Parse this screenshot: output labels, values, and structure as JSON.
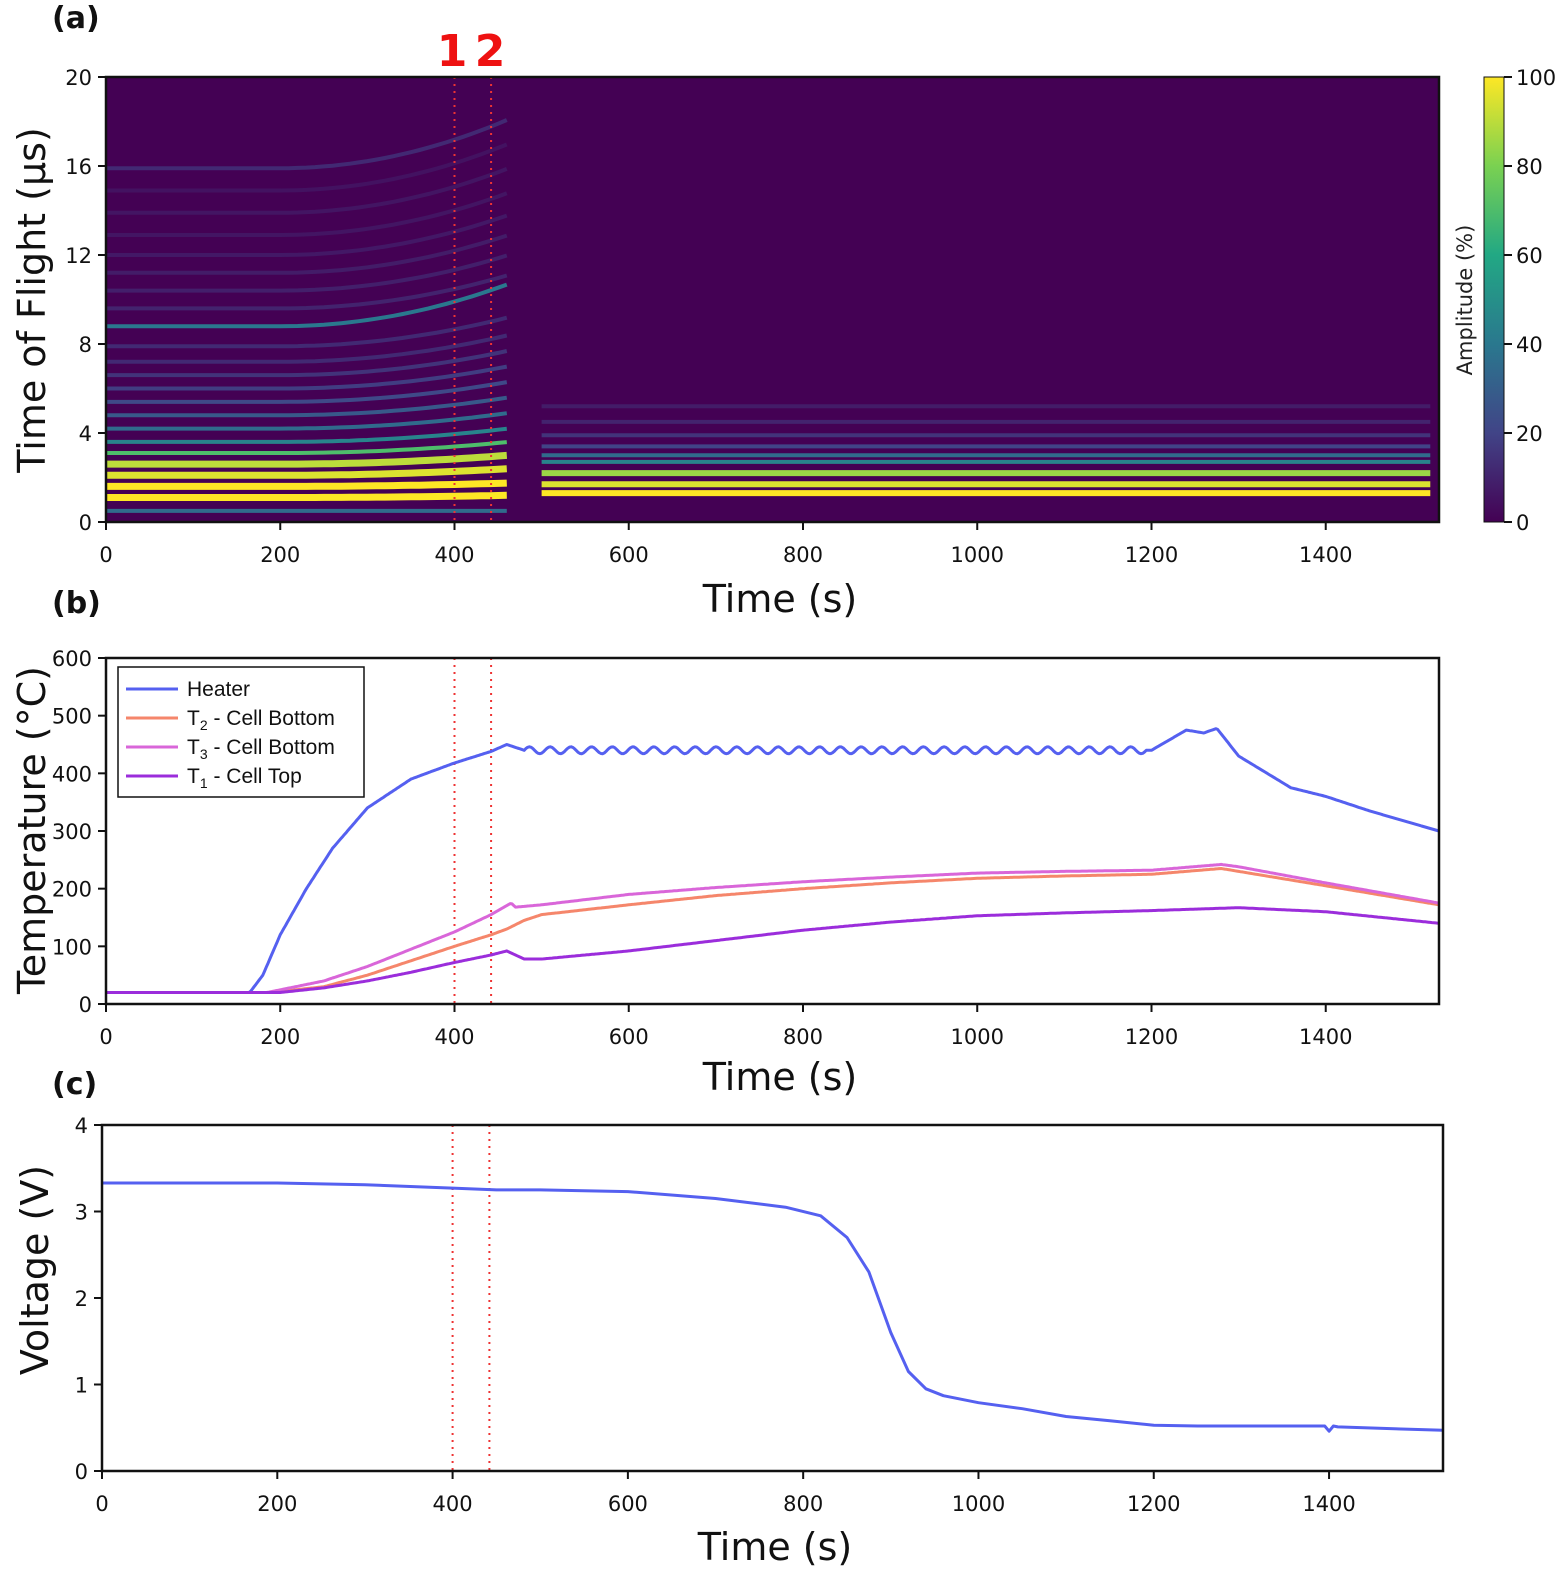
{
  "colors": {
    "heater": "#5560f0",
    "t2": "#f5866b",
    "t3": "#d966d9",
    "t1": "#9b2ddb",
    "voltage": "#5560f0",
    "marker": "#ee3333",
    "viridis_low": "#440154",
    "viridis_high": "#fde725"
  },
  "markers": {
    "times": [
      400,
      442
    ],
    "labels": [
      "1",
      "2"
    ]
  },
  "chart_data": [
    {
      "type": "heatmap",
      "panel_label": "(a)",
      "xlabel": "Time (s)",
      "ylabel": "Time of Flight (μs)",
      "colorbar_label": "Amplitude (%)",
      "xlim": [
        0,
        1530
      ],
      "ylim": [
        0,
        20
      ],
      "clim": [
        0,
        100
      ],
      "xticks": [
        0,
        200,
        400,
        600,
        800,
        1000,
        1200,
        1400
      ],
      "yticks": [
        0,
        4,
        8,
        12,
        16,
        20
      ],
      "cticks": [
        0,
        20,
        40,
        60,
        80,
        100
      ],
      "bands": [
        {
          "tof": 0.5,
          "amp": 35,
          "shift": 0
        },
        {
          "tof": 1.1,
          "amp": 100,
          "shift": 0.1
        },
        {
          "tof": 1.6,
          "amp": 100,
          "shift": 0.15
        },
        {
          "tof": 2.1,
          "amp": 95,
          "shift": 0.3
        },
        {
          "tof": 2.6,
          "amp": 90,
          "shift": 0.4
        },
        {
          "tof": 3.1,
          "amp": 70,
          "shift": 0.5
        },
        {
          "tof": 3.6,
          "amp": 45,
          "shift": 0.6
        },
        {
          "tof": 4.2,
          "amp": 35,
          "shift": 0.7
        },
        {
          "tof": 4.8,
          "amp": 28,
          "shift": 0.8
        },
        {
          "tof": 5.4,
          "amp": 22,
          "shift": 0.9
        },
        {
          "tof": 6.0,
          "amp": 18,
          "shift": 1.0
        },
        {
          "tof": 6.6,
          "amp": 15,
          "shift": 1.1
        },
        {
          "tof": 7.2,
          "amp": 12,
          "shift": 1.2
        },
        {
          "tof": 7.9,
          "amp": 12,
          "shift": 1.3
        },
        {
          "tof": 8.8,
          "amp": 40,
          "shift": 1.9
        },
        {
          "tof": 9.6,
          "amp": 10,
          "shift": 1.5
        },
        {
          "tof": 10.4,
          "amp": 9,
          "shift": 1.6
        },
        {
          "tof": 11.2,
          "amp": 8,
          "shift": 1.7
        },
        {
          "tof": 12.0,
          "amp": 7,
          "shift": 1.8
        },
        {
          "tof": 12.9,
          "amp": 6,
          "shift": 1.9
        },
        {
          "tof": 13.9,
          "amp": 6,
          "shift": 2.0
        },
        {
          "tof": 14.9,
          "amp": 5,
          "shift": 2.1
        },
        {
          "tof": 15.9,
          "amp": 12,
          "shift": 2.2
        }
      ],
      "late_bands": [
        {
          "tof": 1.3,
          "amp": 100
        },
        {
          "tof": 1.7,
          "amp": 95
        },
        {
          "tof": 2.2,
          "amp": 85
        },
        {
          "tof": 2.7,
          "amp": 45
        },
        {
          "tof": 3.0,
          "amp": 35
        },
        {
          "tof": 3.4,
          "amp": 20
        },
        {
          "tof": 3.9,
          "amp": 15
        },
        {
          "tof": 4.5,
          "amp": 10
        },
        {
          "tof": 5.2,
          "amp": 8
        }
      ]
    },
    {
      "type": "line",
      "panel_label": "(b)",
      "xlabel": "Time (s)",
      "ylabel": "Temperature (°C)",
      "xlim": [
        0,
        1530
      ],
      "ylim": [
        0,
        600
      ],
      "xticks": [
        0,
        200,
        400,
        600,
        800,
        1000,
        1200,
        1400
      ],
      "yticks": [
        0,
        100,
        200,
        300,
        400,
        500,
        600
      ],
      "legend_position": "top-left",
      "series": [
        {
          "name": "Heater",
          "key": "heater",
          "base": "Heater",
          "sub": "",
          "suffix": "",
          "oscillate": true,
          "x": [
            0,
            165,
            180,
            200,
            230,
            260,
            300,
            350,
            400,
            442,
            460,
            480,
            1200,
            1240,
            1260,
            1275,
            1300,
            1360,
            1400,
            1450,
            1530
          ],
          "y": [
            20,
            20,
            50,
            120,
            200,
            270,
            340,
            390,
            418,
            438,
            450,
            440,
            440,
            475,
            470,
            478,
            430,
            375,
            360,
            335,
            300
          ]
        },
        {
          "name": "T2 - Cell Bottom",
          "key": "t2",
          "base": "T",
          "sub": "2",
          "suffix": " - Cell Bottom",
          "oscillate": false,
          "x": [
            0,
            190,
            250,
            300,
            350,
            400,
            442,
            460,
            480,
            500,
            600,
            700,
            800,
            900,
            1000,
            1100,
            1200,
            1280,
            1300,
            1400,
            1530
          ],
          "y": [
            20,
            20,
            30,
            50,
            75,
            100,
            120,
            130,
            145,
            155,
            172,
            188,
            200,
            210,
            218,
            222,
            225,
            235,
            230,
            205,
            172
          ]
        },
        {
          "name": "T3 - Cell Bottom",
          "key": "t3",
          "base": "T",
          "sub": "3",
          "suffix": " - Cell Bottom",
          "oscillate": false,
          "x": [
            0,
            185,
            250,
            300,
            350,
            400,
            442,
            465,
            470,
            500,
            600,
            700,
            800,
            900,
            1000,
            1100,
            1200,
            1280,
            1300,
            1400,
            1530
          ],
          "y": [
            20,
            20,
            40,
            65,
            95,
            125,
            155,
            175,
            168,
            172,
            190,
            202,
            212,
            220,
            227,
            230,
            232,
            242,
            238,
            210,
            175
          ]
        },
        {
          "name": "T1 - Cell Top",
          "key": "t1",
          "base": "T",
          "sub": "1",
          "suffix": " - Cell Top",
          "oscillate": false,
          "x": [
            0,
            200,
            250,
            300,
            350,
            400,
            442,
            460,
            480,
            500,
            600,
            700,
            800,
            900,
            1000,
            1100,
            1200,
            1300,
            1400,
            1530
          ],
          "y": [
            20,
            20,
            28,
            40,
            55,
            72,
            85,
            92,
            78,
            78,
            92,
            110,
            128,
            142,
            153,
            158,
            162,
            167,
            160,
            140
          ]
        }
      ]
    },
    {
      "type": "line",
      "panel_label": "(c)",
      "xlabel": "Time (s)",
      "ylabel": "Voltage (V)",
      "xlim": [
        0,
        1530
      ],
      "ylim": [
        0,
        4
      ],
      "xticks": [
        0,
        200,
        400,
        600,
        800,
        1000,
        1200,
        1400
      ],
      "yticks": [
        0,
        1,
        2,
        3,
        4
      ],
      "series": [
        {
          "name": "Voltage",
          "key": "voltage",
          "x": [
            0,
            200,
            300,
            400,
            450,
            500,
            600,
            700,
            780,
            820,
            850,
            875,
            900,
            920,
            940,
            960,
            980,
            1000,
            1050,
            1100,
            1150,
            1200,
            1250,
            1300,
            1395,
            1400,
            1405,
            1410,
            1530
          ],
          "y": [
            3.33,
            3.33,
            3.31,
            3.27,
            3.25,
            3.25,
            3.23,
            3.15,
            3.05,
            2.95,
            2.7,
            2.3,
            1.6,
            1.15,
            0.95,
            0.87,
            0.83,
            0.79,
            0.72,
            0.63,
            0.58,
            0.53,
            0.52,
            0.52,
            0.52,
            0.46,
            0.52,
            0.51,
            0.47
          ]
        }
      ]
    }
  ]
}
